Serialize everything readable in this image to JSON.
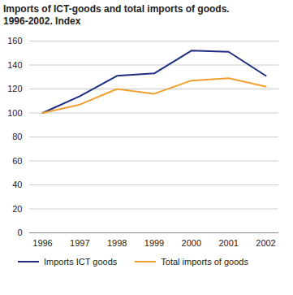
{
  "chart_data": {
    "type": "line",
    "title": "Imports of ICT-goods and total imports of goods. 1996-2002. Index",
    "x": [
      1996,
      1997,
      1998,
      1999,
      2000,
      2001,
      2002
    ],
    "series": [
      {
        "name": "Imports ICT goods",
        "color": "#1f2d80",
        "values": [
          100,
          114,
          131,
          133,
          152,
          151,
          131
        ]
      },
      {
        "name": "Total imports of goods",
        "color": "#f0a030",
        "values": [
          100,
          107,
          120,
          116,
          127,
          129,
          122
        ]
      }
    ],
    "xlim": [
      1996,
      2002
    ],
    "xticks": [
      1996,
      1997,
      1998,
      1999,
      2000,
      2001,
      2002
    ],
    "ylim": [
      0,
      160
    ],
    "yticks": [
      0,
      20,
      40,
      60,
      80,
      100,
      120,
      140,
      160
    ],
    "grid": true,
    "legend": "bottom"
  }
}
